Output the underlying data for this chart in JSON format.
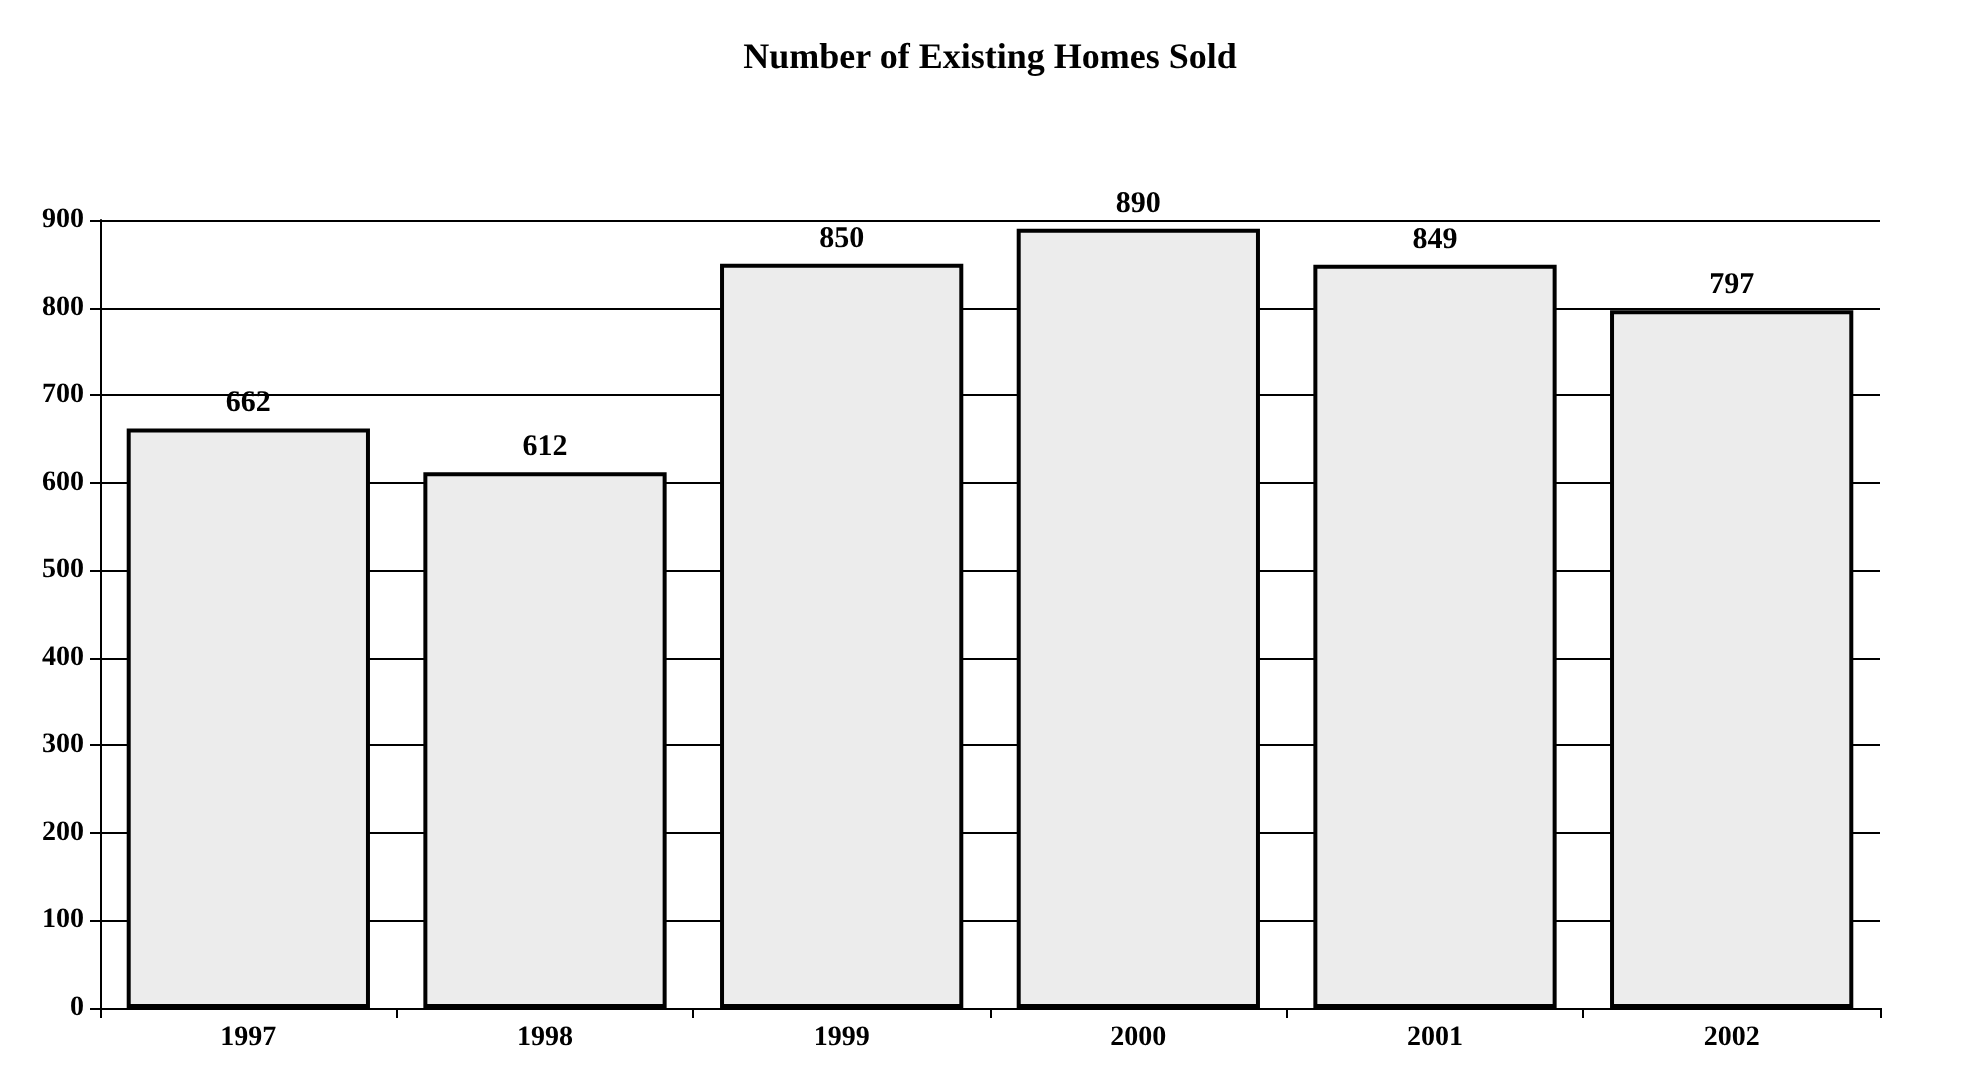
{
  "chart_data": {
    "type": "bar",
    "title": "Number of Existing Homes Sold",
    "categories": [
      "1997",
      "1998",
      "1999",
      "2000",
      "2001",
      "2002"
    ],
    "values": [
      662,
      612,
      850,
      890,
      849,
      797
    ],
    "color": "#ececec",
    "ylim": [
      0,
      900
    ],
    "yticks": [
      0,
      100,
      200,
      300,
      400,
      500,
      600,
      700,
      800,
      900
    ],
    "grid": "y",
    "data_labels": true
  }
}
